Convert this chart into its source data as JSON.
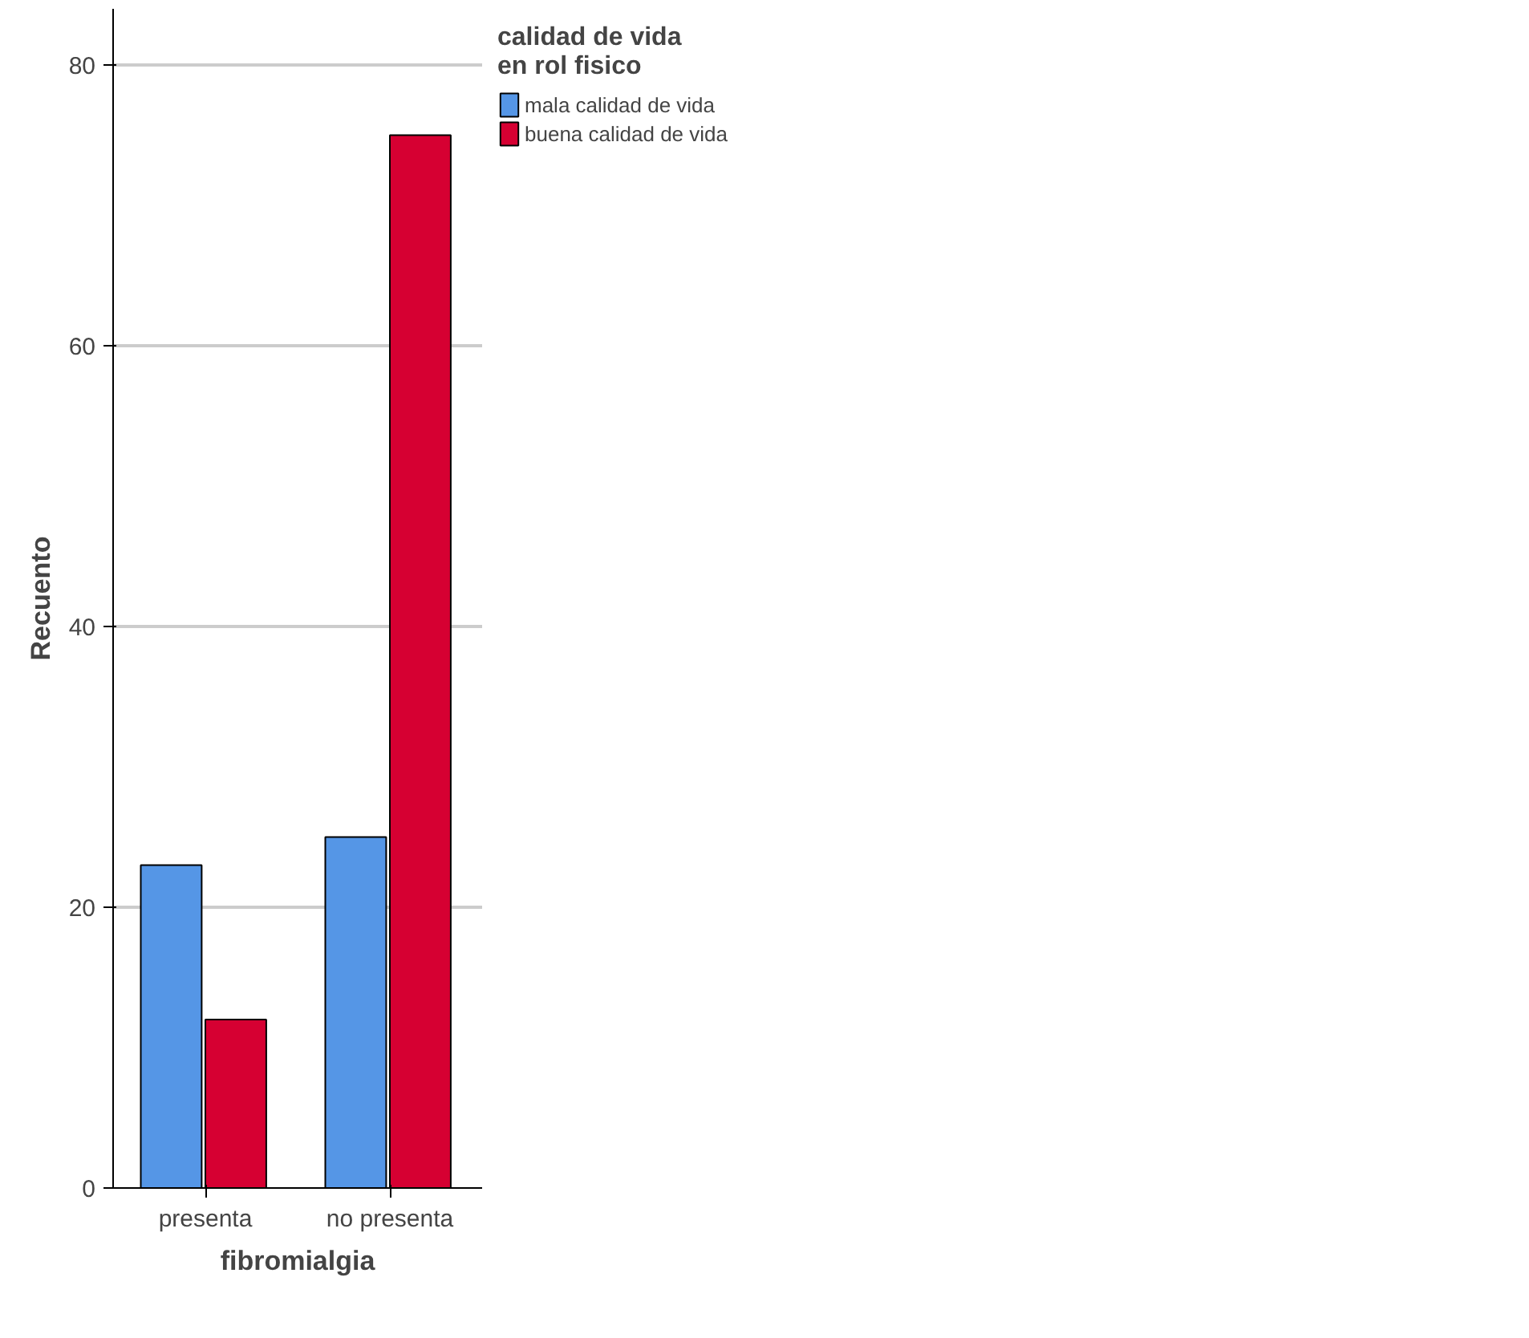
{
  "chart_data": {
    "type": "bar",
    "xlabel": "fibromialgia",
    "ylabel": "Recuento",
    "legend_title": "calidad de vida\nen rol fisico",
    "categories": [
      "presenta",
      "no presenta"
    ],
    "series": [
      {
        "name": "mala calidad de vida",
        "color": "#5596e6",
        "values": [
          23,
          25
        ]
      },
      {
        "name": "buena calidad de vida",
        "color": "#d60032",
        "values": [
          12,
          75
        ]
      }
    ],
    "ylim": [
      0,
      84
    ],
    "yticks": [
      0,
      20,
      40,
      60,
      80
    ],
    "grid": "y",
    "legend": "top right"
  }
}
